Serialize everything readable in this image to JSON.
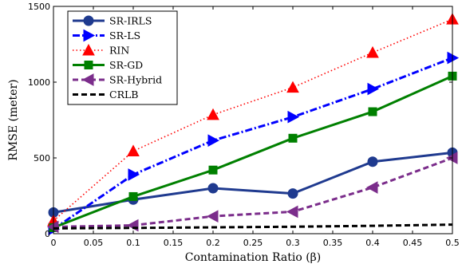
{
  "chart_data": {
    "type": "line",
    "xlabel": "Contamination Ratio (β)",
    "ylabel": "RMSE (meter)",
    "xlim": [
      0,
      0.5
    ],
    "ylim": [
      0,
      1500
    ],
    "xticks": [
      0,
      0.05,
      0.1,
      0.15,
      0.2,
      0.25,
      0.3,
      0.35,
      0.4,
      0.45,
      0.5
    ],
    "xtick_labels": [
      "0",
      "0.05",
      "0.1",
      "0.15",
      "0.2",
      "0.25",
      "0.3",
      "0.35",
      "0.4",
      "0.45",
      "0.5"
    ],
    "yticks": [
      0,
      500,
      1000,
      1500
    ],
    "ytick_labels": [
      "0",
      "500",
      "1000",
      "1500"
    ],
    "grid": false,
    "legend_position": "top-left",
    "x": [
      0,
      0.1,
      0.2,
      0.3,
      0.4,
      0.5
    ],
    "series": [
      {
        "name": "SR-IRLS",
        "values": [
          140,
          225,
          300,
          265,
          475,
          535
        ],
        "color": "#1f3a8f",
        "dash": "solid",
        "marker": "circle"
      },
      {
        "name": "SR-LS",
        "values": [
          30,
          390,
          615,
          770,
          955,
          1160
        ],
        "color": "#0000ff",
        "dash": "dashdot",
        "marker": "triangle-right"
      },
      {
        "name": "RIN",
        "values": [
          85,
          545,
          785,
          965,
          1195,
          1415
        ],
        "color": "#ff0000",
        "dash": "dotted",
        "marker": "triangle-up"
      },
      {
        "name": "SR-GD",
        "values": [
          40,
          245,
          420,
          630,
          805,
          1040
        ],
        "color": "#008000",
        "dash": "solid",
        "marker": "square"
      },
      {
        "name": "SR-Hybrid",
        "values": [
          45,
          55,
          115,
          145,
          305,
          500
        ],
        "color": "#7b2d8b",
        "dash": "dashed",
        "marker": "triangle-left"
      },
      {
        "name": "CRLB",
        "values": [
          35,
          38,
          42,
          46,
          52,
          60
        ],
        "color": "#000000",
        "dash": "dashed",
        "marker": "none"
      }
    ]
  }
}
